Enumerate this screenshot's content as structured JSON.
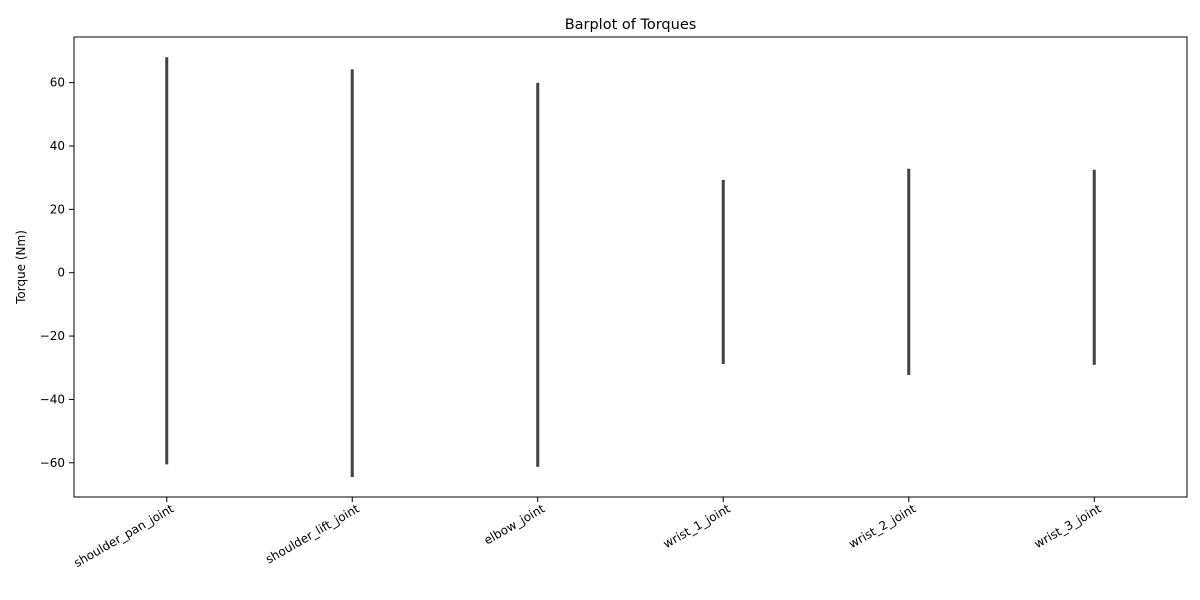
{
  "chart_data": {
    "type": "bar",
    "title": "Barplot of Torques",
    "xlabel": "",
    "ylabel": "Torque (Nm)",
    "categories": [
      "shoulder_pan_joint",
      "shoulder_lift_joint",
      "elbow_joint",
      "wrist_1_joint",
      "wrist_2_joint",
      "wrist_3_joint"
    ],
    "values": [
      0,
      0,
      0,
      0,
      0,
      0
    ],
    "error_bars": [
      {
        "low": -60.5,
        "high": 68.0
      },
      {
        "low": -64.5,
        "high": 64.2
      },
      {
        "low": -61.3,
        "high": 59.9
      },
      {
        "low": -28.8,
        "high": 29.3
      },
      {
        "low": -32.3,
        "high": 32.8
      },
      {
        "low": -29.1,
        "high": 32.5
      }
    ],
    "yticks": [
      -60,
      -40,
      -20,
      0,
      20,
      40,
      60
    ],
    "ylim": [
      -70.8,
      74.4
    ],
    "grid": false,
    "legend": "none",
    "colors": {
      "error_bar": "#424242",
      "axis": "#000000"
    }
  }
}
